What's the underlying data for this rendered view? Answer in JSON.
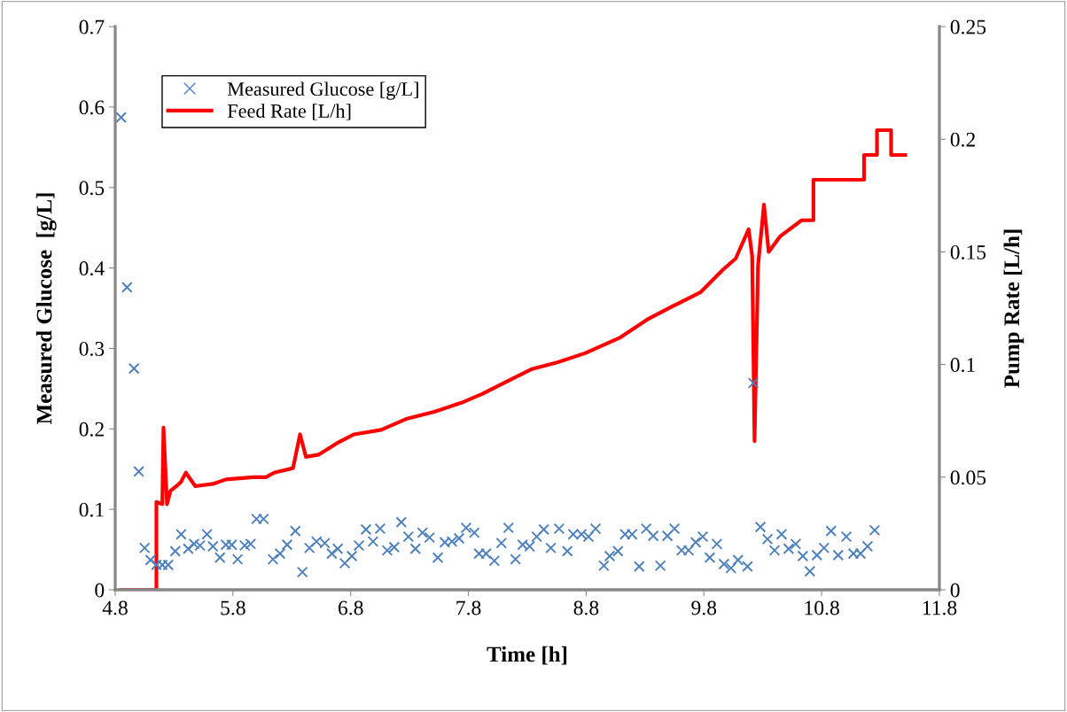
{
  "chart_data": {
    "type": "scatter",
    "xlabel": "Time [h]",
    "ylabel": "Measured Glucose  [g/L]",
    "y2label": "Pump Rate [L/h]",
    "xlim": [
      4.8,
      11.8
    ],
    "xticks": [
      4.8,
      5.8,
      6.8,
      7.8,
      8.8,
      9.8,
      10.8,
      11.8
    ],
    "ylim": [
      0,
      0.7
    ],
    "yticks": [
      0,
      0.1,
      0.2,
      0.3,
      0.4,
      0.5,
      0.6,
      0.7
    ],
    "y2lim": [
      0,
      0.25
    ],
    "y2ticks": [
      0,
      0.05,
      0.1,
      0.15,
      0.2,
      0.25
    ],
    "grid": false,
    "legend": "top left",
    "series": [
      {
        "name": "Measured Glucose [g/L]",
        "marker": "cross",
        "color": "#4f81bd",
        "x": [
          4.85,
          4.9,
          4.96,
          5.0,
          5.05,
          5.1,
          5.15,
          5.2,
          5.25,
          5.31,
          5.36,
          5.42,
          5.47,
          5.52,
          5.58,
          5.63,
          5.69,
          5.74,
          5.79,
          5.84,
          5.9,
          5.95,
          6.0,
          6.06,
          6.14,
          6.2,
          6.26,
          6.33,
          6.39,
          6.45,
          6.51,
          6.58,
          6.64,
          6.69,
          6.75,
          6.81,
          6.87,
          6.93,
          6.99,
          7.05,
          7.11,
          7.17,
          7.23,
          7.29,
          7.35,
          7.41,
          7.47,
          7.54,
          7.6,
          7.66,
          7.72,
          7.78,
          7.85,
          7.89,
          7.95,
          8.02,
          8.08,
          8.14,
          8.2,
          8.26,
          8.32,
          8.38,
          8.44,
          8.5,
          8.57,
          8.64,
          8.69,
          8.76,
          8.82,
          8.88,
          8.95,
          9.0,
          9.07,
          9.13,
          9.19,
          9.25,
          9.31,
          9.37,
          9.43,
          9.49,
          9.55,
          9.61,
          9.67,
          9.73,
          9.79,
          9.85,
          9.91,
          9.97,
          10.03,
          10.09,
          10.17,
          10.22,
          10.28,
          10.34,
          10.4,
          10.46,
          10.52,
          10.58,
          10.64,
          10.7,
          10.76,
          10.82,
          10.88,
          10.94,
          11.01,
          11.07,
          11.13,
          11.19,
          11.25
        ],
        "values": [
          0.587,
          0.376,
          0.275,
          0.147,
          0.052,
          0.037,
          0.031,
          0.031,
          0.031,
          0.048,
          0.069,
          0.051,
          0.057,
          0.055,
          0.069,
          0.054,
          0.04,
          0.056,
          0.056,
          0.038,
          0.055,
          0.057,
          0.088,
          0.088,
          0.038,
          0.045,
          0.056,
          0.073,
          0.022,
          0.052,
          0.06,
          0.058,
          0.045,
          0.051,
          0.033,
          0.042,
          0.055,
          0.075,
          0.06,
          0.076,
          0.049,
          0.053,
          0.084,
          0.066,
          0.051,
          0.071,
          0.065,
          0.04,
          0.059,
          0.06,
          0.064,
          0.077,
          0.071,
          0.045,
          0.045,
          0.036,
          0.058,
          0.077,
          0.038,
          0.056,
          0.054,
          0.066,
          0.075,
          0.052,
          0.076,
          0.048,
          0.069,
          0.069,
          0.066,
          0.076,
          0.03,
          0.042,
          0.048,
          0.069,
          0.069,
          0.029,
          0.076,
          0.067,
          0.03,
          0.067,
          0.076,
          0.049,
          0.049,
          0.059,
          0.066,
          0.04,
          0.057,
          0.032,
          0.027,
          0.037,
          0.029,
          0.257,
          0.078,
          0.063,
          0.049,
          0.069,
          0.051,
          0.057,
          0.042,
          0.023,
          0.043,
          0.052,
          0.073,
          0.043,
          0.066,
          0.045,
          0.045,
          0.054,
          0.074
        ]
      },
      {
        "name": "Feed Rate [L/h]",
        "type": "line",
        "axis": "y2",
        "marker": "none",
        "line_style": "solid",
        "color": "#ff0000",
        "x": [
          4.85,
          5.15,
          5.15,
          5.2,
          5.21,
          5.24,
          5.27,
          5.32,
          5.36,
          5.4,
          5.48,
          5.63,
          5.74,
          5.97,
          6.08,
          6.15,
          6.31,
          6.37,
          6.42,
          6.53,
          6.68,
          6.83,
          7.06,
          7.28,
          7.51,
          7.74,
          7.92,
          8.11,
          8.34,
          8.56,
          8.79,
          9.09,
          9.32,
          9.54,
          9.77,
          9.96,
          10.07,
          10.18,
          10.21,
          10.23,
          10.26,
          10.31,
          10.35,
          10.45,
          10.63,
          10.73,
          10.73,
          11.16,
          11.16,
          11.27,
          11.27,
          11.39,
          11.39,
          11.51
        ],
        "values": [
          0,
          0,
          0.039,
          0.038,
          0.072,
          0.038,
          0.044,
          0.046,
          0.048,
          0.052,
          0.046,
          0.047,
          0.049,
          0.05,
          0.05,
          0.052,
          0.054,
          0.069,
          0.059,
          0.06,
          0.065,
          0.069,
          0.071,
          0.076,
          0.079,
          0.083,
          0.087,
          0.092,
          0.098,
          0.101,
          0.105,
          0.112,
          0.12,
          0.126,
          0.132,
          0.142,
          0.147,
          0.16,
          0.148,
          0.066,
          0.144,
          0.171,
          0.15,
          0.157,
          0.164,
          0.164,
          0.182,
          0.182,
          0.193,
          0.193,
          0.204,
          0.204,
          0.193,
          0.193
        ]
      }
    ]
  }
}
